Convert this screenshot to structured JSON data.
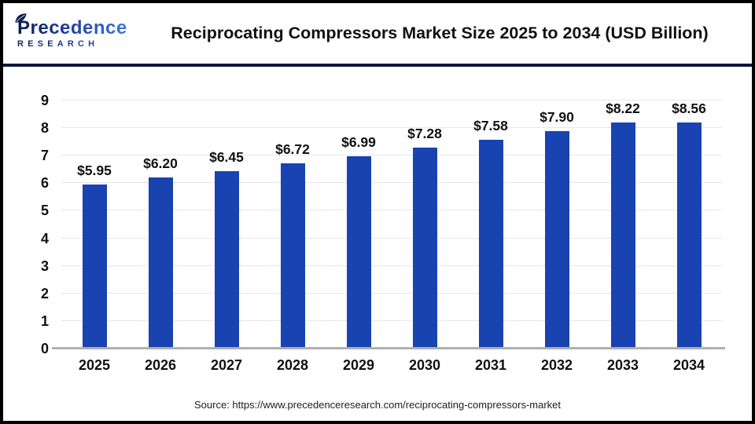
{
  "header": {
    "logo": {
      "wordmark": "Precedence",
      "subtitle": "RESEARCH"
    },
    "title": "Reciprocating Compressors Market Size 2025 to 2034 (USD Billion)"
  },
  "chart_data": {
    "type": "bar",
    "title": "Reciprocating Compressors Market Size 2025 to 2034 (USD Billion)",
    "categories": [
      "2025",
      "2026",
      "2027",
      "2028",
      "2029",
      "2030",
      "2031",
      "2032",
      "2033",
      "2034"
    ],
    "values": [
      5.95,
      6.2,
      6.45,
      6.72,
      6.99,
      7.28,
      7.58,
      7.9,
      8.22,
      8.56
    ],
    "bar_labels": [
      "$5.95",
      "$6.20",
      "$6.45",
      "$6.72",
      "$6.99",
      "$7.28",
      "$7.58",
      "$7.90",
      "$8.22",
      "$8.56"
    ],
    "xlabel": "",
    "ylabel": "",
    "ylim": [
      0,
      9
    ],
    "yticks": [
      0,
      1,
      2,
      3,
      4,
      5,
      6,
      7,
      8,
      9
    ],
    "grid": true,
    "legend": "none",
    "bar_color": "#1843b0"
  },
  "footer": {
    "source": "Source: https://www.precedenceresearch.com/reciprocating-compressors-market"
  },
  "colors": {
    "bar": "#1843b0",
    "divider": "#10173d",
    "frame_border": "#000000",
    "gridline": "#e7e7e7",
    "baseline": "#b0b0b0",
    "title_text": "#111111",
    "logo_navy": "#0c1c52",
    "logo_blue": "#2e6ad6"
  }
}
